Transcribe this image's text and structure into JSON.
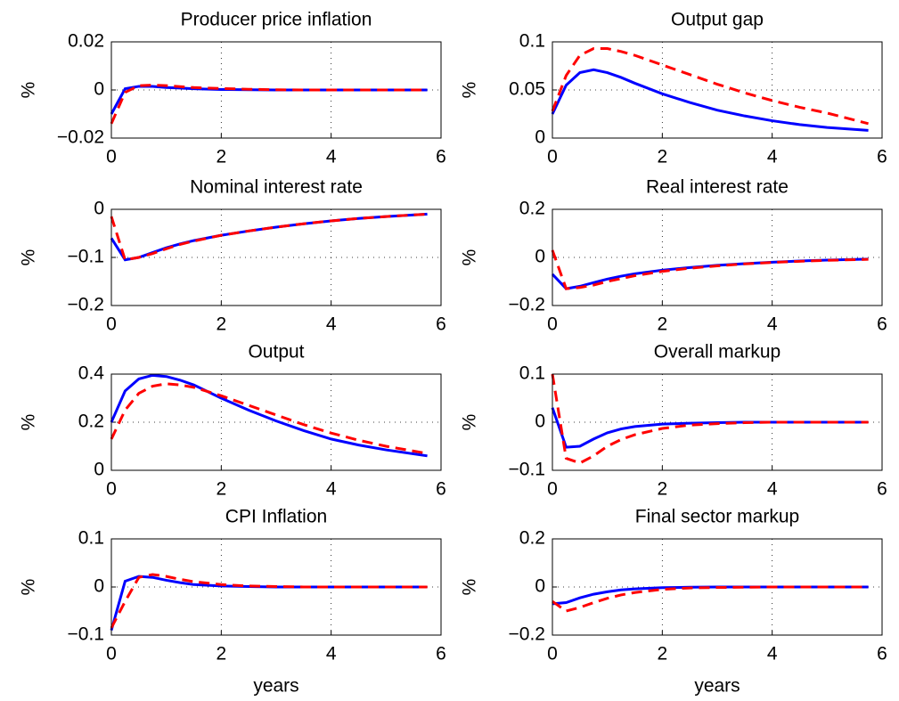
{
  "chart_data": [
    {
      "type": "line",
      "title": "Producer price inflation",
      "ylabel": "%",
      "grid": true,
      "x": [
        0,
        0.25,
        0.5,
        0.75,
        1,
        1.25,
        1.5,
        2,
        2.5,
        3,
        3.5,
        4,
        4.5,
        5,
        5.75
      ],
      "xlim": [
        0,
        6
      ],
      "xticks": [
        0,
        2,
        4,
        6
      ],
      "ylim": [
        -0.02,
        0.02
      ],
      "yticks": [
        {
          "value": -0.02,
          "label": "−0.02"
        },
        0,
        0.02
      ],
      "series": [
        {
          "color": "#0000ff",
          "style": "solid",
          "values": [
            -0.01,
            0.0005,
            0.0015,
            0.0015,
            0.001,
            0.0008,
            0.0005,
            0.0002,
            0.0001,
            0,
            0,
            0,
            0,
            0,
            0
          ]
        },
        {
          "color": "#ff0000",
          "style": "dashed",
          "values": [
            -0.014,
            -0.001,
            0.0018,
            0.002,
            0.0018,
            0.0014,
            0.001,
            0.0006,
            0.0003,
            0.0001,
            0,
            0,
            0,
            0,
            0
          ]
        }
      ]
    },
    {
      "type": "line",
      "title": "Output gap",
      "ylabel": "%",
      "grid": true,
      "x": [
        0,
        0.25,
        0.5,
        0.75,
        1,
        1.25,
        1.5,
        2,
        2.5,
        3,
        3.5,
        4,
        4.5,
        5,
        5.75
      ],
      "xlim": [
        0,
        6
      ],
      "xticks": [
        0,
        2,
        4,
        6
      ],
      "ylim": [
        0,
        0.1
      ],
      "yticks": [
        0,
        0.05,
        0.1
      ],
      "series": [
        {
          "color": "#0000ff",
          "style": "solid",
          "values": [
            0.025,
            0.055,
            0.068,
            0.071,
            0.068,
            0.063,
            0.057,
            0.046,
            0.037,
            0.029,
            0.023,
            0.018,
            0.014,
            0.011,
            0.008
          ]
        },
        {
          "color": "#ff0000",
          "style": "dashed",
          "values": [
            0.028,
            0.065,
            0.086,
            0.093,
            0.093,
            0.09,
            0.086,
            0.076,
            0.066,
            0.056,
            0.047,
            0.039,
            0.032,
            0.026,
            0.015
          ]
        }
      ]
    },
    {
      "type": "line",
      "title": "Nominal interest rate",
      "ylabel": "%",
      "grid": true,
      "x": [
        0,
        0.25,
        0.5,
        0.75,
        1,
        1.25,
        1.5,
        2,
        2.5,
        3,
        3.5,
        4,
        4.5,
        5,
        5.75
      ],
      "xlim": [
        0,
        6
      ],
      "xticks": [
        0,
        2,
        4,
        6
      ],
      "ylim": [
        -0.2,
        0
      ],
      "yticks": [
        {
          "value": -0.2,
          "label": "−0.2"
        },
        {
          "value": -0.1,
          "label": "−0.1"
        },
        0
      ],
      "series": [
        {
          "color": "#0000ff",
          "style": "solid",
          "values": [
            -0.06,
            -0.105,
            -0.1,
            -0.09,
            -0.08,
            -0.072,
            -0.065,
            -0.054,
            -0.045,
            -0.037,
            -0.03,
            -0.024,
            -0.019,
            -0.015,
            -0.01
          ]
        },
        {
          "color": "#ff0000",
          "style": "dashed",
          "values": [
            -0.015,
            -0.105,
            -0.1,
            -0.092,
            -0.082,
            -0.073,
            -0.066,
            -0.054,
            -0.045,
            -0.037,
            -0.03,
            -0.024,
            -0.019,
            -0.015,
            -0.01
          ]
        }
      ]
    },
    {
      "type": "line",
      "title": "Real interest rate",
      "ylabel": "%",
      "grid": true,
      "x": [
        0,
        0.25,
        0.5,
        0.75,
        1,
        1.25,
        1.5,
        2,
        2.5,
        3,
        3.5,
        4,
        4.5,
        5,
        5.75
      ],
      "xlim": [
        0,
        6
      ],
      "xticks": [
        0,
        2,
        4,
        6
      ],
      "ylim": [
        -0.2,
        0.2
      ],
      "yticks": [
        {
          "value": -0.2,
          "label": "−0.2"
        },
        0,
        0.2
      ],
      "series": [
        {
          "color": "#0000ff",
          "style": "solid",
          "values": [
            -0.07,
            -0.13,
            -0.12,
            -0.105,
            -0.09,
            -0.078,
            -0.068,
            -0.053,
            -0.042,
            -0.033,
            -0.026,
            -0.02,
            -0.015,
            -0.011,
            -0.007
          ]
        },
        {
          "color": "#ff0000",
          "style": "dashed",
          "values": [
            0.03,
            -0.13,
            -0.125,
            -0.115,
            -0.1,
            -0.088,
            -0.076,
            -0.058,
            -0.045,
            -0.035,
            -0.027,
            -0.021,
            -0.016,
            -0.012,
            -0.008
          ]
        }
      ]
    },
    {
      "type": "line",
      "title": "Output",
      "ylabel": "%",
      "grid": true,
      "x": [
        0,
        0.25,
        0.5,
        0.75,
        1,
        1.25,
        1.5,
        2,
        2.5,
        3,
        3.5,
        4,
        4.5,
        5,
        5.75
      ],
      "xlim": [
        0,
        6
      ],
      "xticks": [
        0,
        2,
        4,
        6
      ],
      "ylim": [
        0,
        0.4
      ],
      "yticks": [
        0,
        0.2,
        0.4
      ],
      "series": [
        {
          "color": "#0000ff",
          "style": "solid",
          "values": [
            0.2,
            0.33,
            0.38,
            0.395,
            0.39,
            0.375,
            0.355,
            0.3,
            0.25,
            0.205,
            0.165,
            0.13,
            0.105,
            0.085,
            0.06
          ]
        },
        {
          "color": "#ff0000",
          "style": "dashed",
          "values": [
            0.13,
            0.25,
            0.32,
            0.35,
            0.36,
            0.355,
            0.345,
            0.31,
            0.27,
            0.23,
            0.19,
            0.155,
            0.125,
            0.1,
            0.07
          ]
        }
      ]
    },
    {
      "type": "line",
      "title": "Overall markup",
      "ylabel": "%",
      "grid": true,
      "x": [
        0,
        0.25,
        0.5,
        0.75,
        1,
        1.25,
        1.5,
        2,
        2.5,
        3,
        3.5,
        4,
        4.5,
        5,
        5.75
      ],
      "xlim": [
        0,
        6
      ],
      "xticks": [
        0,
        2,
        4,
        6
      ],
      "ylim": [
        -0.1,
        0.1
      ],
      "yticks": [
        {
          "value": -0.1,
          "label": "−0.1"
        },
        0,
        0.1
      ],
      "series": [
        {
          "color": "#0000ff",
          "style": "solid",
          "values": [
            0.03,
            -0.052,
            -0.05,
            -0.035,
            -0.022,
            -0.014,
            -0.009,
            -0.004,
            -0.002,
            -0.001,
            0,
            0,
            0,
            0,
            0
          ]
        },
        {
          "color": "#ff0000",
          "style": "dashed",
          "values": [
            0.1,
            -0.075,
            -0.085,
            -0.07,
            -0.05,
            -0.036,
            -0.026,
            -0.013,
            -0.006,
            -0.003,
            -0.001,
            0,
            0,
            0,
            0
          ]
        }
      ]
    },
    {
      "type": "line",
      "title": "CPI Inflation",
      "ylabel": "%",
      "xlabel": "years",
      "grid": true,
      "x": [
        0,
        0.25,
        0.5,
        0.75,
        1,
        1.25,
        1.5,
        2,
        2.5,
        3,
        3.5,
        4,
        4.5,
        5,
        5.75
      ],
      "xlim": [
        0,
        6
      ],
      "xticks": [
        0,
        2,
        4,
        6
      ],
      "ylim": [
        -0.1,
        0.1
      ],
      "yticks": [
        {
          "value": -0.1,
          "label": "−0.1"
        },
        0,
        0.1
      ],
      "series": [
        {
          "color": "#0000ff",
          "style": "solid",
          "values": [
            -0.09,
            0.012,
            0.022,
            0.02,
            0.014,
            0.009,
            0.005,
            0.002,
            0.001,
            0,
            0,
            0,
            0,
            0,
            0
          ]
        },
        {
          "color": "#ff0000",
          "style": "dashed",
          "values": [
            -0.085,
            -0.03,
            0.02,
            0.026,
            0.022,
            0.016,
            0.011,
            0.005,
            0.002,
            0.001,
            0,
            0,
            0,
            0,
            0
          ]
        }
      ]
    },
    {
      "type": "line",
      "title": "Final sector markup",
      "ylabel": "%",
      "xlabel": "years",
      "grid": true,
      "x": [
        0,
        0.25,
        0.5,
        0.75,
        1,
        1.25,
        1.5,
        2,
        2.5,
        3,
        3.5,
        4,
        4.5,
        5,
        5.75
      ],
      "xlim": [
        0,
        6
      ],
      "xticks": [
        0,
        2,
        4,
        6
      ],
      "ylim": [
        -0.2,
        0.2
      ],
      "yticks": [
        {
          "value": -0.2,
          "label": "−0.2"
        },
        0,
        0.2
      ],
      "series": [
        {
          "color": "#0000ff",
          "style": "solid",
          "values": [
            -0.07,
            -0.065,
            -0.045,
            -0.03,
            -0.02,
            -0.012,
            -0.008,
            -0.003,
            -0.001,
            0,
            0,
            0,
            0,
            0,
            0
          ]
        },
        {
          "color": "#ff0000",
          "style": "dashed",
          "values": [
            -0.06,
            -0.1,
            -0.085,
            -0.065,
            -0.047,
            -0.033,
            -0.023,
            -0.01,
            -0.004,
            -0.002,
            -0.001,
            0,
            0,
            0,
            0
          ]
        }
      ]
    }
  ]
}
